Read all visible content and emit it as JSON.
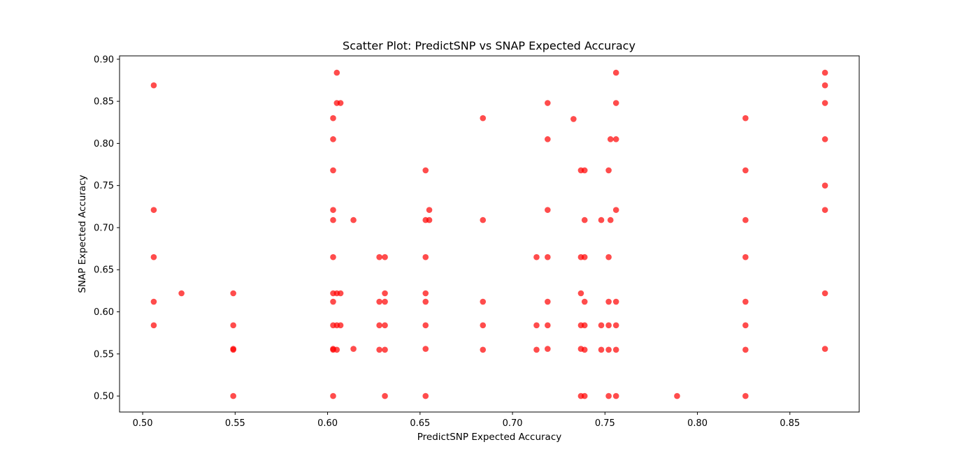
{
  "chart_data": {
    "type": "scatter",
    "title": "Scatter Plot: PredictSNP vs SNAP Expected Accuracy",
    "xlabel": "PredictSNP Expected Accuracy",
    "ylabel": "SNAP Expected Accuracy",
    "xlim": [
      0.4875,
      0.8875
    ],
    "ylim": [
      0.481,
      0.904
    ],
    "xticks": [
      "0.50",
      "0.55",
      "0.60",
      "0.65",
      "0.70",
      "0.75",
      "0.80",
      "0.85"
    ],
    "yticks": [
      "0.50",
      "0.55",
      "0.60",
      "0.65",
      "0.70",
      "0.75",
      "0.80",
      "0.85",
      "0.90"
    ],
    "grid": false,
    "marker_color": "#ff0000",
    "marker_alpha": 0.7,
    "points": [
      [
        0.506,
        0.869
      ],
      [
        0.506,
        0.721
      ],
      [
        0.506,
        0.665
      ],
      [
        0.506,
        0.612
      ],
      [
        0.506,
        0.584
      ],
      [
        0.521,
        0.622
      ],
      [
        0.549,
        0.622
      ],
      [
        0.549,
        0.584
      ],
      [
        0.549,
        0.556
      ],
      [
        0.549,
        0.555
      ],
      [
        0.549,
        0.5
      ],
      [
        0.603,
        0.83
      ],
      [
        0.603,
        0.805
      ],
      [
        0.603,
        0.768
      ],
      [
        0.603,
        0.721
      ],
      [
        0.603,
        0.709
      ],
      [
        0.603,
        0.665
      ],
      [
        0.603,
        0.622
      ],
      [
        0.603,
        0.612
      ],
      [
        0.603,
        0.584
      ],
      [
        0.603,
        0.556
      ],
      [
        0.603,
        0.555
      ],
      [
        0.603,
        0.5
      ],
      [
        0.605,
        0.884
      ],
      [
        0.605,
        0.848
      ],
      [
        0.605,
        0.622
      ],
      [
        0.605,
        0.584
      ],
      [
        0.605,
        0.555
      ],
      [
        0.607,
        0.848
      ],
      [
        0.607,
        0.622
      ],
      [
        0.607,
        0.584
      ],
      [
        0.614,
        0.709
      ],
      [
        0.614,
        0.556
      ],
      [
        0.628,
        0.665
      ],
      [
        0.628,
        0.612
      ],
      [
        0.628,
        0.584
      ],
      [
        0.628,
        0.555
      ],
      [
        0.631,
        0.665
      ],
      [
        0.631,
        0.622
      ],
      [
        0.631,
        0.612
      ],
      [
        0.631,
        0.584
      ],
      [
        0.631,
        0.555
      ],
      [
        0.631,
        0.5
      ],
      [
        0.653,
        0.768
      ],
      [
        0.653,
        0.709
      ],
      [
        0.653,
        0.665
      ],
      [
        0.653,
        0.622
      ],
      [
        0.653,
        0.612
      ],
      [
        0.653,
        0.584
      ],
      [
        0.653,
        0.556
      ],
      [
        0.653,
        0.5
      ],
      [
        0.655,
        0.721
      ],
      [
        0.655,
        0.709
      ],
      [
        0.684,
        0.83
      ],
      [
        0.684,
        0.709
      ],
      [
        0.684,
        0.612
      ],
      [
        0.684,
        0.584
      ],
      [
        0.684,
        0.555
      ],
      [
        0.713,
        0.665
      ],
      [
        0.713,
        0.584
      ],
      [
        0.713,
        0.555
      ],
      [
        0.719,
        0.848
      ],
      [
        0.719,
        0.805
      ],
      [
        0.719,
        0.721
      ],
      [
        0.719,
        0.665
      ],
      [
        0.719,
        0.612
      ],
      [
        0.719,
        0.584
      ],
      [
        0.719,
        0.556
      ],
      [
        0.733,
        0.829
      ],
      [
        0.737,
        0.768
      ],
      [
        0.737,
        0.665
      ],
      [
        0.737,
        0.622
      ],
      [
        0.737,
        0.584
      ],
      [
        0.737,
        0.556
      ],
      [
        0.737,
        0.5
      ],
      [
        0.739,
        0.768
      ],
      [
        0.739,
        0.709
      ],
      [
        0.739,
        0.665
      ],
      [
        0.739,
        0.612
      ],
      [
        0.739,
        0.584
      ],
      [
        0.739,
        0.555
      ],
      [
        0.739,
        0.5
      ],
      [
        0.748,
        0.709
      ],
      [
        0.748,
        0.584
      ],
      [
        0.748,
        0.555
      ],
      [
        0.752,
        0.768
      ],
      [
        0.752,
        0.665
      ],
      [
        0.752,
        0.612
      ],
      [
        0.752,
        0.584
      ],
      [
        0.752,
        0.555
      ],
      [
        0.752,
        0.5
      ],
      [
        0.753,
        0.805
      ],
      [
        0.753,
        0.709
      ],
      [
        0.756,
        0.884
      ],
      [
        0.756,
        0.848
      ],
      [
        0.756,
        0.805
      ],
      [
        0.756,
        0.721
      ],
      [
        0.756,
        0.612
      ],
      [
        0.756,
        0.584
      ],
      [
        0.756,
        0.555
      ],
      [
        0.756,
        0.5
      ],
      [
        0.789,
        0.5
      ],
      [
        0.826,
        0.83
      ],
      [
        0.826,
        0.768
      ],
      [
        0.826,
        0.709
      ],
      [
        0.826,
        0.665
      ],
      [
        0.826,
        0.612
      ],
      [
        0.826,
        0.584
      ],
      [
        0.826,
        0.555
      ],
      [
        0.826,
        0.5
      ],
      [
        0.869,
        0.884
      ],
      [
        0.869,
        0.869
      ],
      [
        0.869,
        0.848
      ],
      [
        0.869,
        0.805
      ],
      [
        0.869,
        0.75
      ],
      [
        0.869,
        0.721
      ],
      [
        0.869,
        0.622
      ],
      [
        0.869,
        0.556
      ]
    ]
  }
}
